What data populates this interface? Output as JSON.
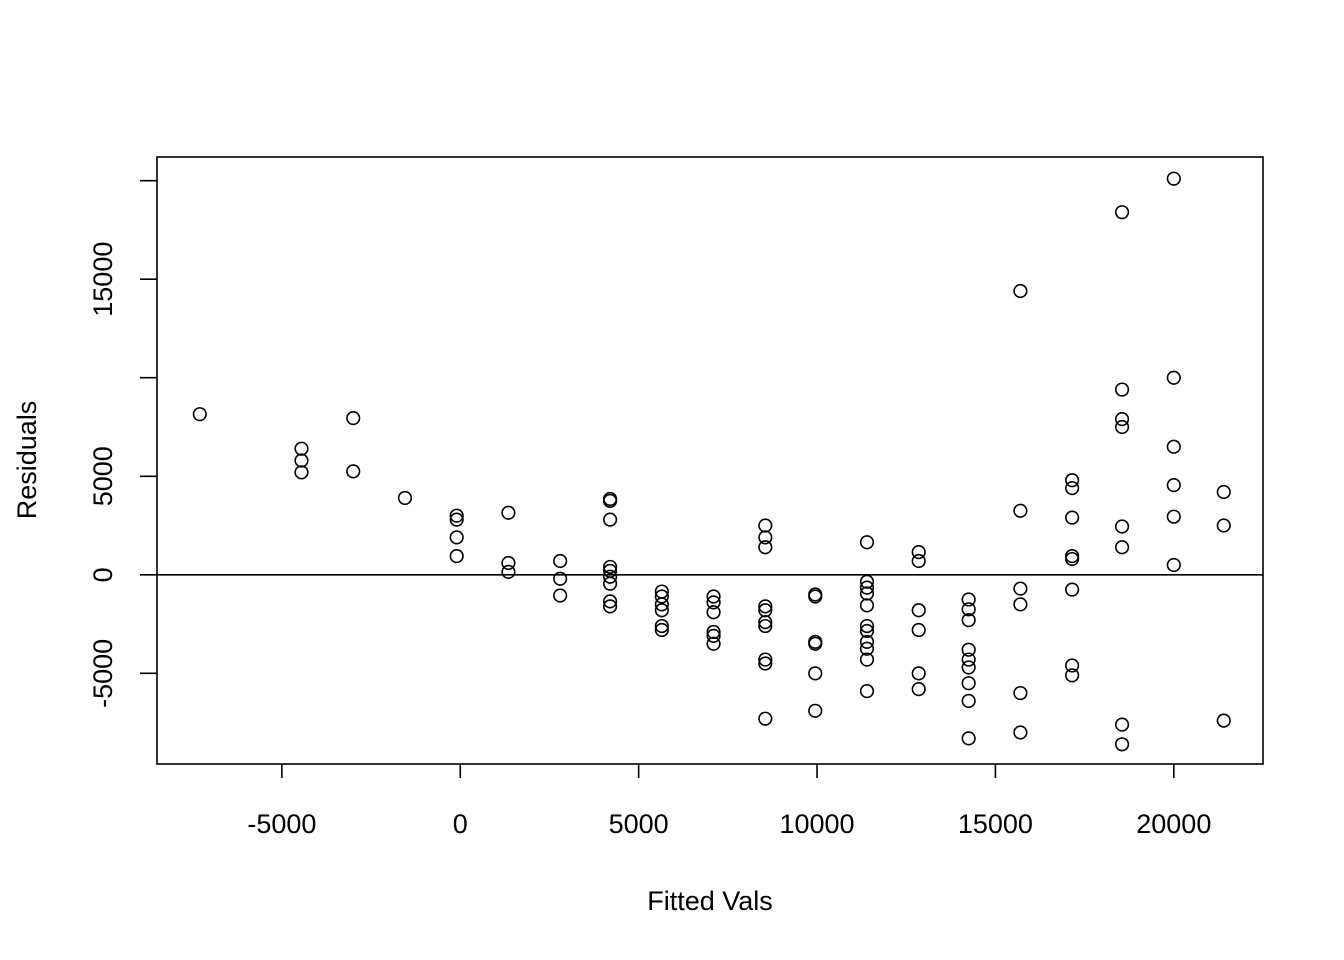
{
  "chart_data": {
    "type": "scatter",
    "title": "",
    "xlabel": "Fitted Vals",
    "ylabel": "Residuals",
    "xlim": [
      -8500,
      22500
    ],
    "ylim": [
      -9600,
      21200
    ],
    "x_ticks": [
      -5000,
      0,
      5000,
      10000,
      15000,
      20000
    ],
    "x_tick_labels": [
      "-5000",
      "0",
      "5000",
      "10000",
      "15000",
      "20000"
    ],
    "y_ticks": [
      -5000,
      0,
      5000,
      10000,
      15000,
      20000
    ],
    "y_tick_labels": [
      "-5000",
      "0",
      "5000",
      "",
      "15000",
      ""
    ],
    "hline": 0,
    "grid": false,
    "points": [
      [
        -7300,
        8150
      ],
      [
        -4450,
        6400
      ],
      [
        -4450,
        5800
      ],
      [
        -4450,
        5200
      ],
      [
        -3000,
        7950
      ],
      [
        -3000,
        5250
      ],
      [
        -1550,
        3900
      ],
      [
        -100,
        3000
      ],
      [
        -100,
        2800
      ],
      [
        -100,
        1900
      ],
      [
        -100,
        950
      ],
      [
        1350,
        3150
      ],
      [
        1350,
        600
      ],
      [
        1350,
        150
      ],
      [
        2800,
        700
      ],
      [
        2800,
        -200
      ],
      [
        2800,
        -1050
      ],
      [
        4200,
        3850
      ],
      [
        4200,
        3750
      ],
      [
        4200,
        2800
      ],
      [
        4200,
        400
      ],
      [
        4200,
        200
      ],
      [
        4200,
        -100
      ],
      [
        4200,
        -450
      ],
      [
        4200,
        -1350
      ],
      [
        4200,
        -1600
      ],
      [
        5650,
        -850
      ],
      [
        5650,
        -1100
      ],
      [
        5650,
        -1500
      ],
      [
        5650,
        -1800
      ],
      [
        5650,
        -2600
      ],
      [
        5650,
        -2800
      ],
      [
        7100,
        -1100
      ],
      [
        7100,
        -1400
      ],
      [
        7100,
        -1900
      ],
      [
        7100,
        -2900
      ],
      [
        7100,
        -3100
      ],
      [
        7100,
        -3500
      ],
      [
        8550,
        2500
      ],
      [
        8550,
        1900
      ],
      [
        8550,
        1400
      ],
      [
        8550,
        -1600
      ],
      [
        8550,
        -1800
      ],
      [
        8550,
        -2400
      ],
      [
        8550,
        -2600
      ],
      [
        8550,
        -4300
      ],
      [
        8550,
        -4500
      ],
      [
        8550,
        -7300
      ],
      [
        9950,
        -1000
      ],
      [
        9950,
        -1100
      ],
      [
        9950,
        -3400
      ],
      [
        9950,
        -3500
      ],
      [
        9950,
        -5000
      ],
      [
        9950,
        -6900
      ],
      [
        11400,
        1650
      ],
      [
        11400,
        -350
      ],
      [
        11400,
        -650
      ],
      [
        11400,
        -950
      ],
      [
        11400,
        -1550
      ],
      [
        11400,
        -2600
      ],
      [
        11400,
        -2850
      ],
      [
        11400,
        -3400
      ],
      [
        11400,
        -3750
      ],
      [
        11400,
        -4300
      ],
      [
        11400,
        -5900
      ],
      [
        12850,
        1150
      ],
      [
        12850,
        700
      ],
      [
        12850,
        -1800
      ],
      [
        12850,
        -2800
      ],
      [
        12850,
        -5000
      ],
      [
        12850,
        -5800
      ],
      [
        14250,
        -1250
      ],
      [
        14250,
        -1750
      ],
      [
        14250,
        -2300
      ],
      [
        14250,
        -3800
      ],
      [
        14250,
        -4300
      ],
      [
        14250,
        -4700
      ],
      [
        14250,
        -5500
      ],
      [
        14250,
        -6400
      ],
      [
        14250,
        -8300
      ],
      [
        15700,
        14400
      ],
      [
        15700,
        3250
      ],
      [
        15700,
        -700
      ],
      [
        15700,
        -1500
      ],
      [
        15700,
        -6000
      ],
      [
        15700,
        -8000
      ],
      [
        17150,
        4800
      ],
      [
        17150,
        4400
      ],
      [
        17150,
        2900
      ],
      [
        17150,
        950
      ],
      [
        17150,
        800
      ],
      [
        17150,
        -750
      ],
      [
        17150,
        -4600
      ],
      [
        17150,
        -5100
      ],
      [
        18550,
        18400
      ],
      [
        18550,
        9400
      ],
      [
        18550,
        7900
      ],
      [
        18550,
        7500
      ],
      [
        18550,
        2450
      ],
      [
        18550,
        1400
      ],
      [
        18550,
        -7600
      ],
      [
        18550,
        -8600
      ],
      [
        20000,
        20100
      ],
      [
        20000,
        10000
      ],
      [
        20000,
        6500
      ],
      [
        20000,
        4550
      ],
      [
        20000,
        2950
      ],
      [
        20000,
        500
      ],
      [
        21400,
        4200
      ],
      [
        21400,
        2500
      ],
      [
        21400,
        -7400
      ]
    ]
  }
}
